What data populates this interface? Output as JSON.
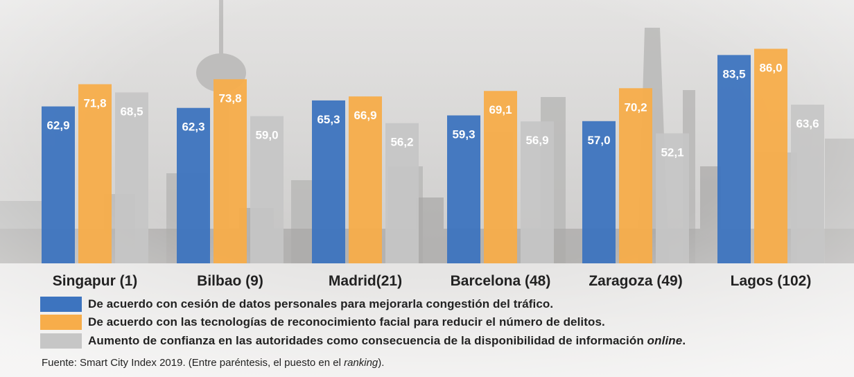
{
  "chart_data": {
    "type": "bar",
    "categories": [
      "Singapur (1)",
      "Bilbao (9)",
      "Madrid(21)",
      "Barcelona (48)",
      "Zaragoza (49)",
      "Lagos (102)"
    ],
    "series": [
      {
        "name": "De acuerdo con cesión de datos personales para mejorarla congestión del tráfico.",
        "color": "#3d74bf",
        "values": [
          62.9,
          62.3,
          65.3,
          59.3,
          57.0,
          83.5
        ],
        "labels": [
          "62,9",
          "62,3",
          "65,3",
          "59,3",
          "57,0",
          "83,5"
        ]
      },
      {
        "name": "De acuerdo con las tecnologías de reconocimiento facial para reducir el número de delitos.",
        "color": "#f7ad4a",
        "values": [
          71.8,
          73.8,
          66.9,
          69.1,
          70.2,
          86.0
        ],
        "labels": [
          "71,8",
          "73,8",
          "66,9",
          "69,1",
          "70,2",
          "86,0"
        ]
      },
      {
        "name_main": "Aumento de confianza en las autoridades como consecuencia de la disponibilidad de información ",
        "name_em": "online",
        "name_end": ".",
        "color": "#c6c6c6",
        "values": [
          68.5,
          59.0,
          56.2,
          56.9,
          52.1,
          63.6
        ],
        "labels": [
          "68,5",
          "59,0",
          "56,2",
          "56,9",
          "52,1",
          "63,6"
        ]
      }
    ],
    "ylim": [
      0,
      100
    ],
    "grid": false,
    "legend_position": "bottom"
  },
  "source": {
    "prefix": "Fuente: Smart City Index 2019. (Entre paréntesis, el puesto en el ",
    "em": "ranking",
    "suffix": ")."
  }
}
